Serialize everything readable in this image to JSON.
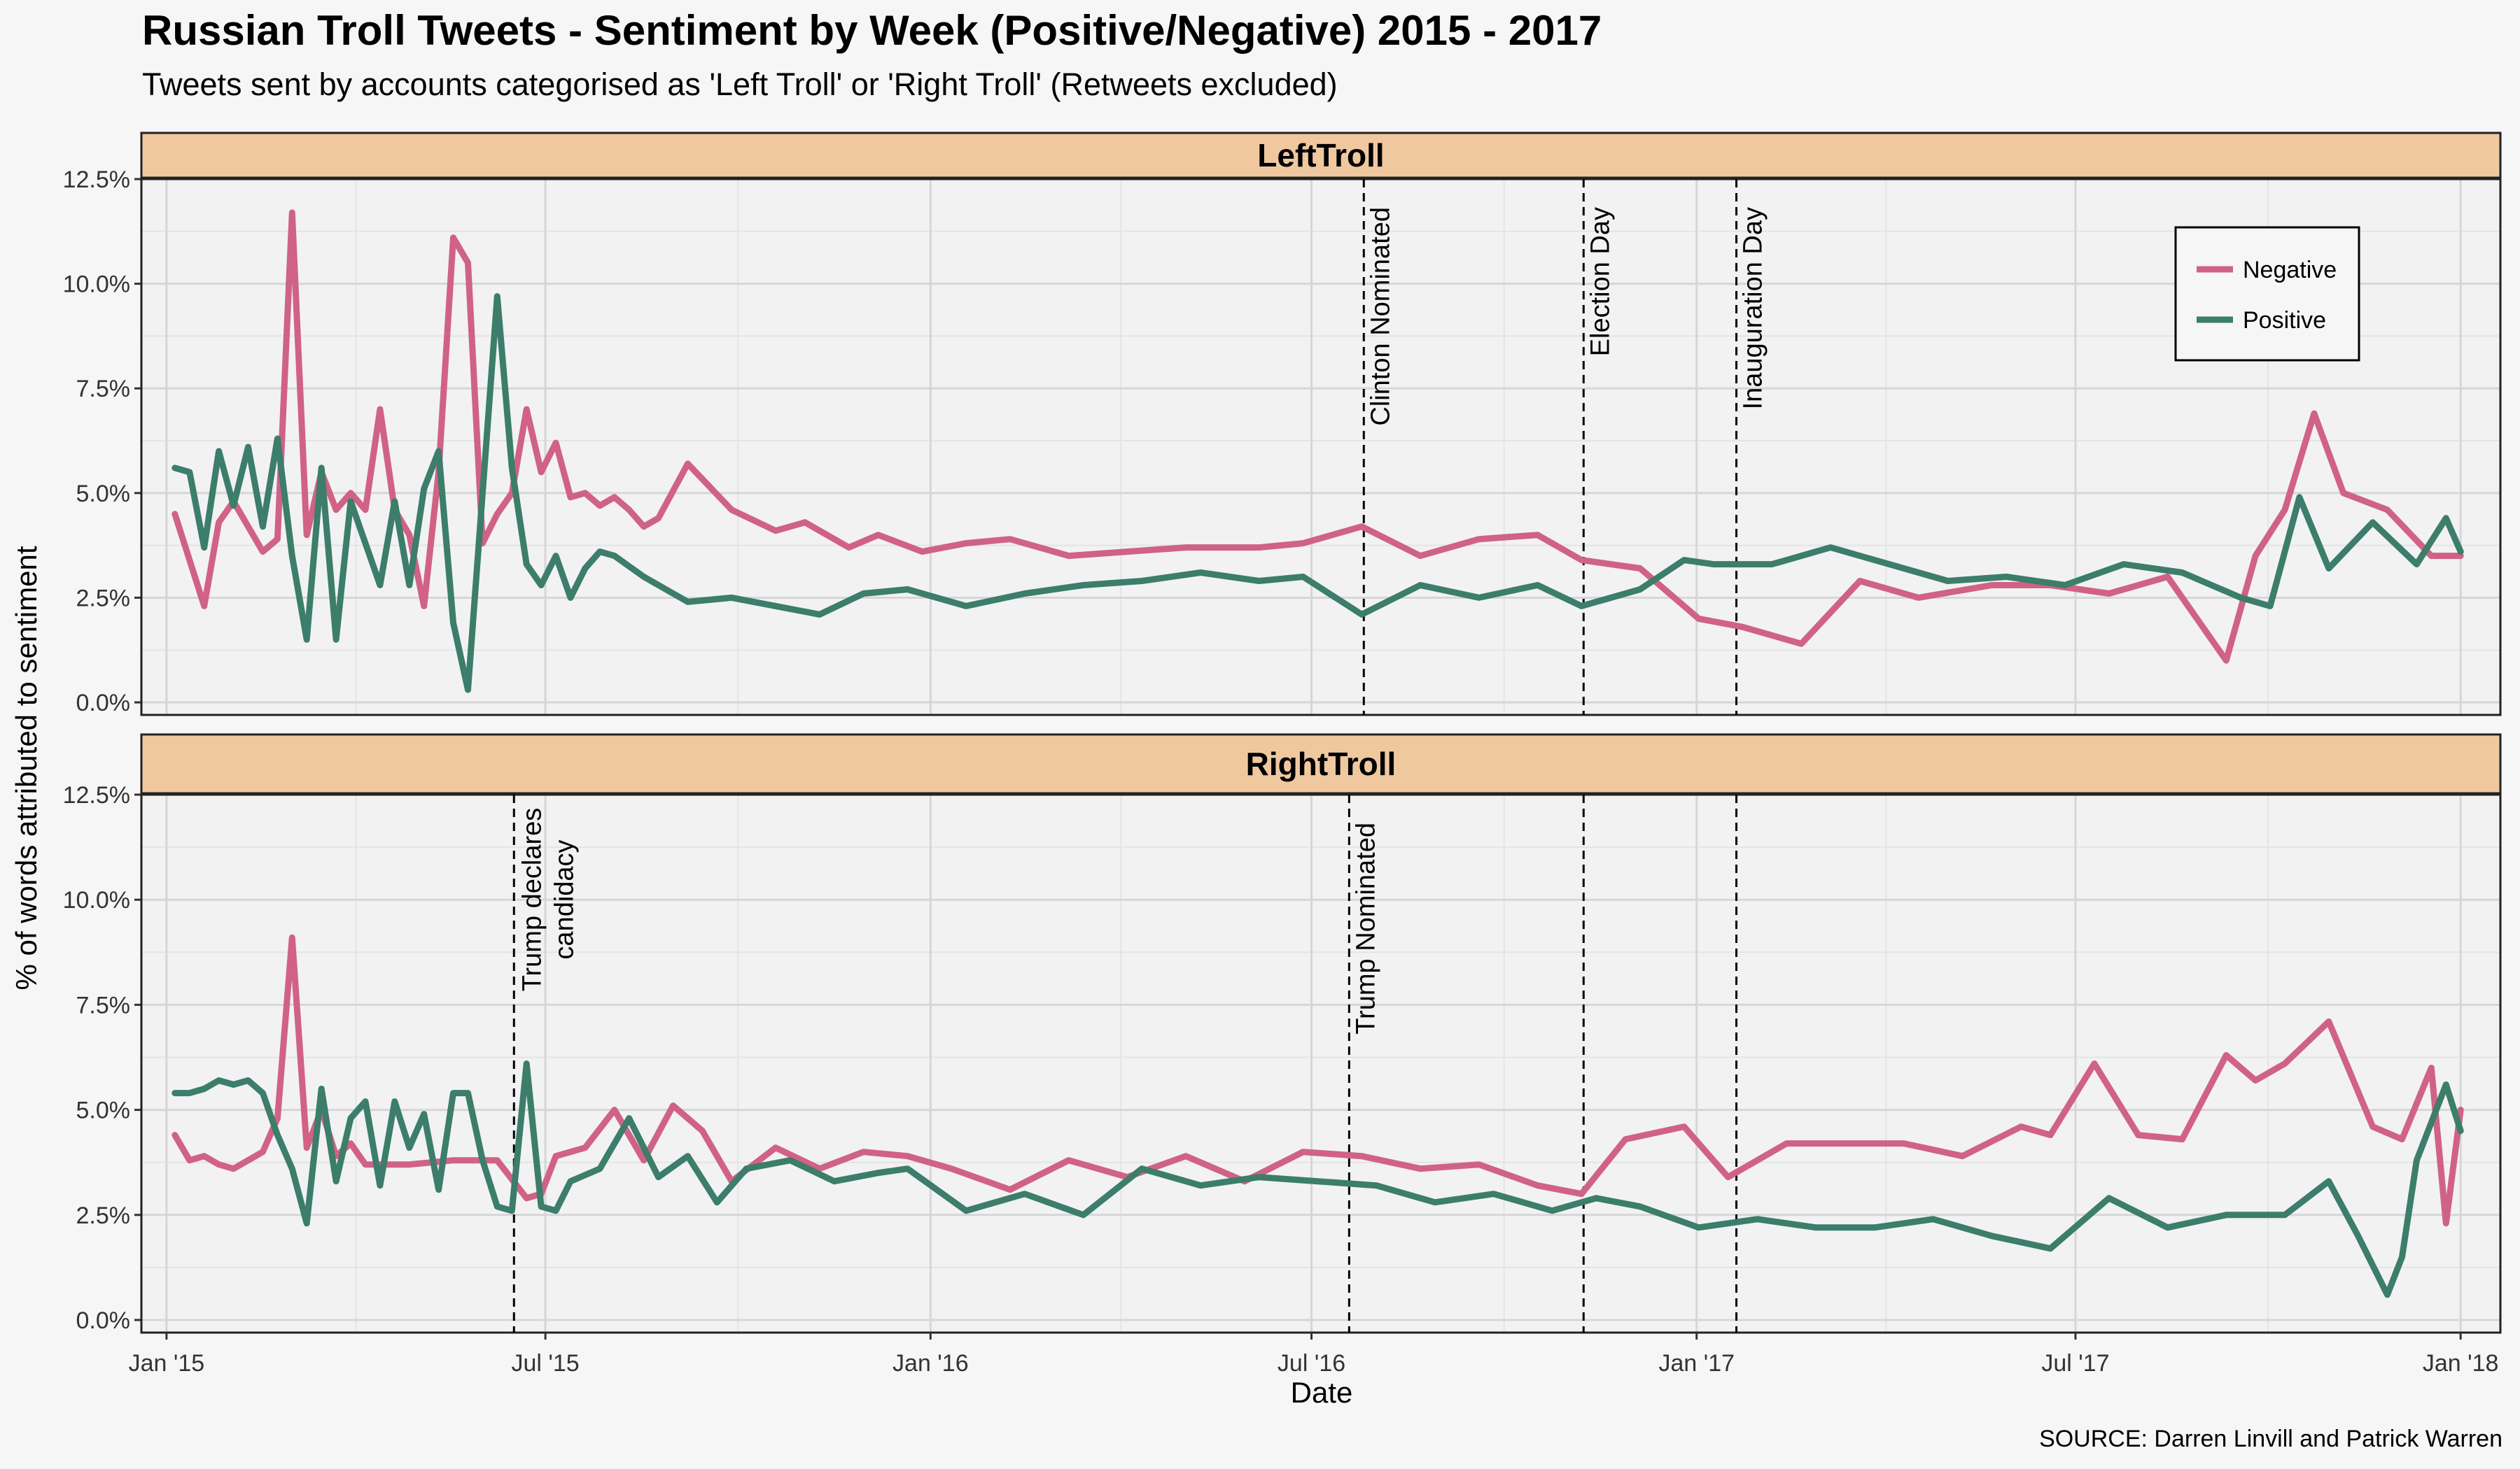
{
  "title": "Russian Troll Tweets - Sentiment by Week (Positive/Negative) 2015 - 2017",
  "subtitle": "Tweets sent by accounts categorised as 'Left Troll' or 'Right Troll' (Retweets excluded)",
  "source": "SOURCE: Darren Linvill and Patrick Warren",
  "colors": {
    "negative": "#d06286",
    "positive": "#3c7d6b",
    "strip": "#f0c8a0",
    "panel": "#f2f2f2",
    "grid": "#d6d6d6"
  },
  "chart_data": {
    "type": "line",
    "xlabel": "Date",
    "ylabel": "% of words attributed to sentiment",
    "x_tick_labels": [
      "Jan '15",
      "Jul '15",
      "Jan '16",
      "Jul '16",
      "Jan '17",
      "Jul '17",
      "Jan '18"
    ],
    "x_tick_dates": [
      "2015-01-01",
      "2015-07-01",
      "2016-01-01",
      "2016-07-01",
      "2017-01-01",
      "2017-07-01",
      "2018-01-01"
    ],
    "xlim": [
      "2014-12-20",
      "2018-01-20"
    ],
    "y_tick_labels": [
      "0.0%",
      "2.5%",
      "5.0%",
      "7.5%",
      "10.0%",
      "12.5%"
    ],
    "y_tick_values": [
      0,
      2.5,
      5,
      7.5,
      10,
      12.5
    ],
    "ylim": [
      -0.3,
      12.5
    ],
    "grid": true,
    "legend": {
      "placement": "top-right",
      "entries": [
        "Negative",
        "Positive"
      ]
    },
    "panels": [
      {
        "name": "LeftTroll",
        "annotations": [
          {
            "date": "2016-07-26",
            "label": "Clinton Nominated"
          },
          {
            "date": "2016-11-08",
            "label": "Election Day"
          },
          {
            "date": "2017-01-20",
            "label": "Inauguration Day"
          }
        ],
        "series": [
          {
            "name": "Negative",
            "color": "#d06286",
            "x": [
              "2015-01-05",
              "2015-01-12",
              "2015-01-19",
              "2015-01-26",
              "2015-02-02",
              "2015-02-09",
              "2015-02-16",
              "2015-02-23",
              "2015-03-02",
              "2015-03-09",
              "2015-03-16",
              "2015-03-23",
              "2015-03-30",
              "2015-04-06",
              "2015-04-13",
              "2015-04-20",
              "2015-04-27",
              "2015-05-04",
              "2015-05-11",
              "2015-05-18",
              "2015-05-25",
              "2015-06-01",
              "2015-06-08",
              "2015-06-15",
              "2015-06-22",
              "2015-06-29",
              "2015-07-06",
              "2015-07-13",
              "2015-07-20",
              "2015-07-27",
              "2015-08-03",
              "2015-08-10",
              "2015-08-17",
              "2015-08-24",
              "2015-09-07",
              "2015-09-28",
              "2015-10-19",
              "2015-11-02",
              "2015-11-23",
              "2015-12-07",
              "2015-12-28",
              "2016-01-18",
              "2016-02-08",
              "2016-03-07",
              "2016-04-04",
              "2016-05-02",
              "2016-06-06",
              "2016-06-27",
              "2016-07-25",
              "2016-08-22",
              "2016-09-19",
              "2016-10-17",
              "2016-11-07",
              "2016-12-05",
              "2017-01-02",
              "2017-01-23",
              "2017-02-20",
              "2017-03-20",
              "2017-04-17",
              "2017-05-22",
              "2017-06-19",
              "2017-07-17",
              "2017-08-14",
              "2017-09-11",
              "2017-09-25",
              "2017-10-09",
              "2017-10-23",
              "2017-11-06",
              "2017-11-27",
              "2017-12-18",
              "2018-01-01"
            ],
            "y": [
              4.5,
              3.4,
              2.3,
              4.3,
              4.8,
              4.2,
              3.6,
              3.9,
              11.7,
              4.0,
              5.5,
              4.6,
              5.0,
              4.6,
              7.0,
              4.6,
              4.0,
              2.3,
              5.5,
              11.1,
              10.5,
              3.8,
              4.5,
              5.0,
              7.0,
              5.5,
              6.2,
              4.9,
              5.0,
              4.7,
              4.9,
              4.6,
              4.2,
              4.4,
              5.7,
              4.6,
              4.1,
              4.3,
              3.7,
              4.0,
              3.6,
              3.8,
              3.9,
              3.5,
              3.6,
              3.7,
              3.7,
              3.8,
              4.2,
              3.5,
              3.9,
              4.0,
              3.4,
              3.2,
              2.0,
              1.8,
              1.4,
              2.9,
              2.5,
              2.8,
              2.8,
              2.6,
              3.0,
              1.0,
              3.5,
              4.6,
              6.9,
              5.0,
              4.6,
              3.5,
              3.5
            ]
          },
          {
            "name": "Positive",
            "color": "#3c7d6b",
            "x": [
              "2015-01-05",
              "2015-01-12",
              "2015-01-19",
              "2015-01-26",
              "2015-02-02",
              "2015-02-09",
              "2015-02-16",
              "2015-02-23",
              "2015-03-02",
              "2015-03-09",
              "2015-03-16",
              "2015-03-23",
              "2015-03-30",
              "2015-04-06",
              "2015-04-13",
              "2015-04-20",
              "2015-04-27",
              "2015-05-04",
              "2015-05-11",
              "2015-05-18",
              "2015-05-25",
              "2015-06-01",
              "2015-06-08",
              "2015-06-15",
              "2015-06-22",
              "2015-06-29",
              "2015-07-06",
              "2015-07-13",
              "2015-07-20",
              "2015-07-27",
              "2015-08-03",
              "2015-08-17",
              "2015-09-07",
              "2015-09-28",
              "2015-10-19",
              "2015-11-09",
              "2015-11-30",
              "2015-12-21",
              "2016-01-18",
              "2016-02-15",
              "2016-03-14",
              "2016-04-11",
              "2016-05-09",
              "2016-06-06",
              "2016-06-27",
              "2016-07-25",
              "2016-08-22",
              "2016-09-19",
              "2016-10-17",
              "2016-11-07",
              "2016-12-05",
              "2016-12-26",
              "2017-01-09",
              "2017-02-06",
              "2017-03-06",
              "2017-04-03",
              "2017-05-01",
              "2017-05-29",
              "2017-06-26",
              "2017-07-24",
              "2017-08-21",
              "2017-09-18",
              "2017-10-02",
              "2017-10-16",
              "2017-10-30",
              "2017-11-20",
              "2017-12-11",
              "2017-12-25",
              "2018-01-01"
            ],
            "y": [
              5.6,
              5.5,
              3.7,
              6.0,
              4.7,
              6.1,
              4.2,
              6.3,
              3.5,
              1.5,
              5.6,
              1.5,
              4.8,
              3.8,
              2.8,
              4.8,
              2.8,
              5.1,
              6.0,
              1.9,
              0.3,
              5.0,
              9.7,
              5.6,
              3.3,
              2.8,
              3.5,
              2.5,
              3.2,
              3.6,
              3.5,
              3.0,
              2.4,
              2.5,
              2.3,
              2.1,
              2.6,
              2.7,
              2.3,
              2.6,
              2.8,
              2.9,
              3.1,
              2.9,
              3.0,
              2.1,
              2.8,
              2.5,
              2.8,
              2.3,
              2.7,
              3.4,
              3.3,
              3.3,
              3.7,
              3.3,
              2.9,
              3.0,
              2.8,
              3.3,
              3.1,
              2.5,
              2.3,
              4.9,
              3.2,
              4.3,
              3.3,
              4.4,
              3.6
            ]
          }
        ]
      },
      {
        "name": "RightTroll",
        "annotations": [
          {
            "date": "2015-06-16",
            "label": "Trump declares\ncandidacy"
          },
          {
            "date": "2016-07-19",
            "label": "Trump Nominated"
          },
          {
            "date": "2016-11-08",
            "label": ""
          },
          {
            "date": "2017-01-20",
            "label": ""
          }
        ],
        "series": [
          {
            "name": "Negative",
            "color": "#d06286",
            "x": [
              "2015-01-05",
              "2015-01-12",
              "2015-01-19",
              "2015-01-26",
              "2015-02-02",
              "2015-02-09",
              "2015-02-16",
              "2015-02-23",
              "2015-03-02",
              "2015-03-09",
              "2015-03-16",
              "2015-03-23",
              "2015-03-30",
              "2015-04-06",
              "2015-04-27",
              "2015-05-18",
              "2015-06-08",
              "2015-06-22",
              "2015-06-29",
              "2015-07-06",
              "2015-07-20",
              "2015-08-03",
              "2015-08-17",
              "2015-08-31",
              "2015-09-14",
              "2015-09-28",
              "2015-10-19",
              "2015-11-09",
              "2015-11-30",
              "2015-12-21",
              "2016-01-11",
              "2016-02-08",
              "2016-03-07",
              "2016-04-04",
              "2016-05-02",
              "2016-05-30",
              "2016-06-27",
              "2016-07-25",
              "2016-08-22",
              "2016-09-19",
              "2016-10-17",
              "2016-11-07",
              "2016-11-28",
              "2016-12-26",
              "2017-01-16",
              "2017-02-13",
              "2017-03-13",
              "2017-04-10",
              "2017-05-08",
              "2017-06-05",
              "2017-06-19",
              "2017-07-10",
              "2017-07-31",
              "2017-08-21",
              "2017-09-11",
              "2017-09-25",
              "2017-10-09",
              "2017-10-30",
              "2017-11-20",
              "2017-12-04",
              "2017-12-18",
              "2017-12-25",
              "2018-01-01"
            ],
            "y": [
              4.4,
              3.8,
              3.9,
              3.7,
              3.6,
              3.8,
              4.0,
              4.8,
              9.1,
              4.1,
              5.0,
              3.9,
              4.2,
              3.7,
              3.7,
              3.8,
              3.8,
              2.9,
              3.0,
              3.9,
              4.1,
              5.0,
              3.8,
              5.1,
              4.5,
              3.3,
              4.1,
              3.6,
              4.0,
              3.9,
              3.6,
              3.1,
              3.8,
              3.4,
              3.9,
              3.3,
              4.0,
              3.9,
              3.6,
              3.7,
              3.2,
              3.0,
              4.3,
              4.6,
              3.4,
              4.2,
              4.2,
              4.2,
              3.9,
              4.6,
              4.4,
              6.1,
              4.4,
              4.3,
              6.3,
              5.7,
              6.1,
              7.1,
              4.6,
              4.3,
              6.0,
              2.3,
              5.0
            ]
          },
          {
            "name": "Positive",
            "color": "#3c7d6b",
            "x": [
              "2015-01-05",
              "2015-01-12",
              "2015-01-19",
              "2015-01-26",
              "2015-02-02",
              "2015-02-09",
              "2015-02-16",
              "2015-02-23",
              "2015-03-02",
              "2015-03-09",
              "2015-03-16",
              "2015-03-23",
              "2015-03-30",
              "2015-04-06",
              "2015-04-13",
              "2015-04-20",
              "2015-04-27",
              "2015-05-04",
              "2015-05-11",
              "2015-05-18",
              "2015-05-25",
              "2015-06-01",
              "2015-06-08",
              "2015-06-15",
              "2015-06-22",
              "2015-06-29",
              "2015-07-06",
              "2015-07-13",
              "2015-07-27",
              "2015-08-10",
              "2015-08-24",
              "2015-09-07",
              "2015-09-21",
              "2015-10-05",
              "2015-10-26",
              "2015-11-16",
              "2015-12-07",
              "2015-12-21",
              "2016-01-18",
              "2016-02-15",
              "2016-03-14",
              "2016-04-11",
              "2016-05-09",
              "2016-06-06",
              "2016-07-04",
              "2016-08-01",
              "2016-08-29",
              "2016-09-26",
              "2016-10-24",
              "2016-11-14",
              "2016-12-05",
              "2017-01-02",
              "2017-01-30",
              "2017-02-27",
              "2017-03-27",
              "2017-04-24",
              "2017-05-22",
              "2017-06-19",
              "2017-07-17",
              "2017-08-14",
              "2017-09-11",
              "2017-10-09",
              "2017-10-30",
              "2017-11-13",
              "2017-11-27",
              "2017-12-04",
              "2017-12-11",
              "2017-12-25",
              "2018-01-01"
            ],
            "y": [
              5.4,
              5.4,
              5.5,
              5.7,
              5.6,
              5.7,
              5.4,
              4.4,
              3.6,
              2.3,
              5.5,
              3.3,
              4.8,
              5.2,
              3.2,
              5.2,
              4.1,
              4.9,
              3.1,
              5.4,
              5.4,
              3.8,
              2.7,
              2.6,
              6.1,
              2.7,
              2.6,
              3.3,
              3.6,
              4.8,
              3.4,
              3.9,
              2.8,
              3.6,
              3.8,
              3.3,
              3.5,
              3.6,
              2.6,
              3.0,
              2.5,
              3.6,
              3.2,
              3.4,
              3.3,
              3.2,
              2.8,
              3.0,
              2.6,
              2.9,
              2.7,
              2.2,
              2.4,
              2.2,
              2.2,
              2.4,
              2.0,
              1.7,
              2.9,
              2.2,
              2.5,
              2.5,
              3.3,
              2.0,
              0.6,
              1.5,
              3.8,
              5.6,
              4.5
            ]
          }
        ]
      }
    ]
  }
}
